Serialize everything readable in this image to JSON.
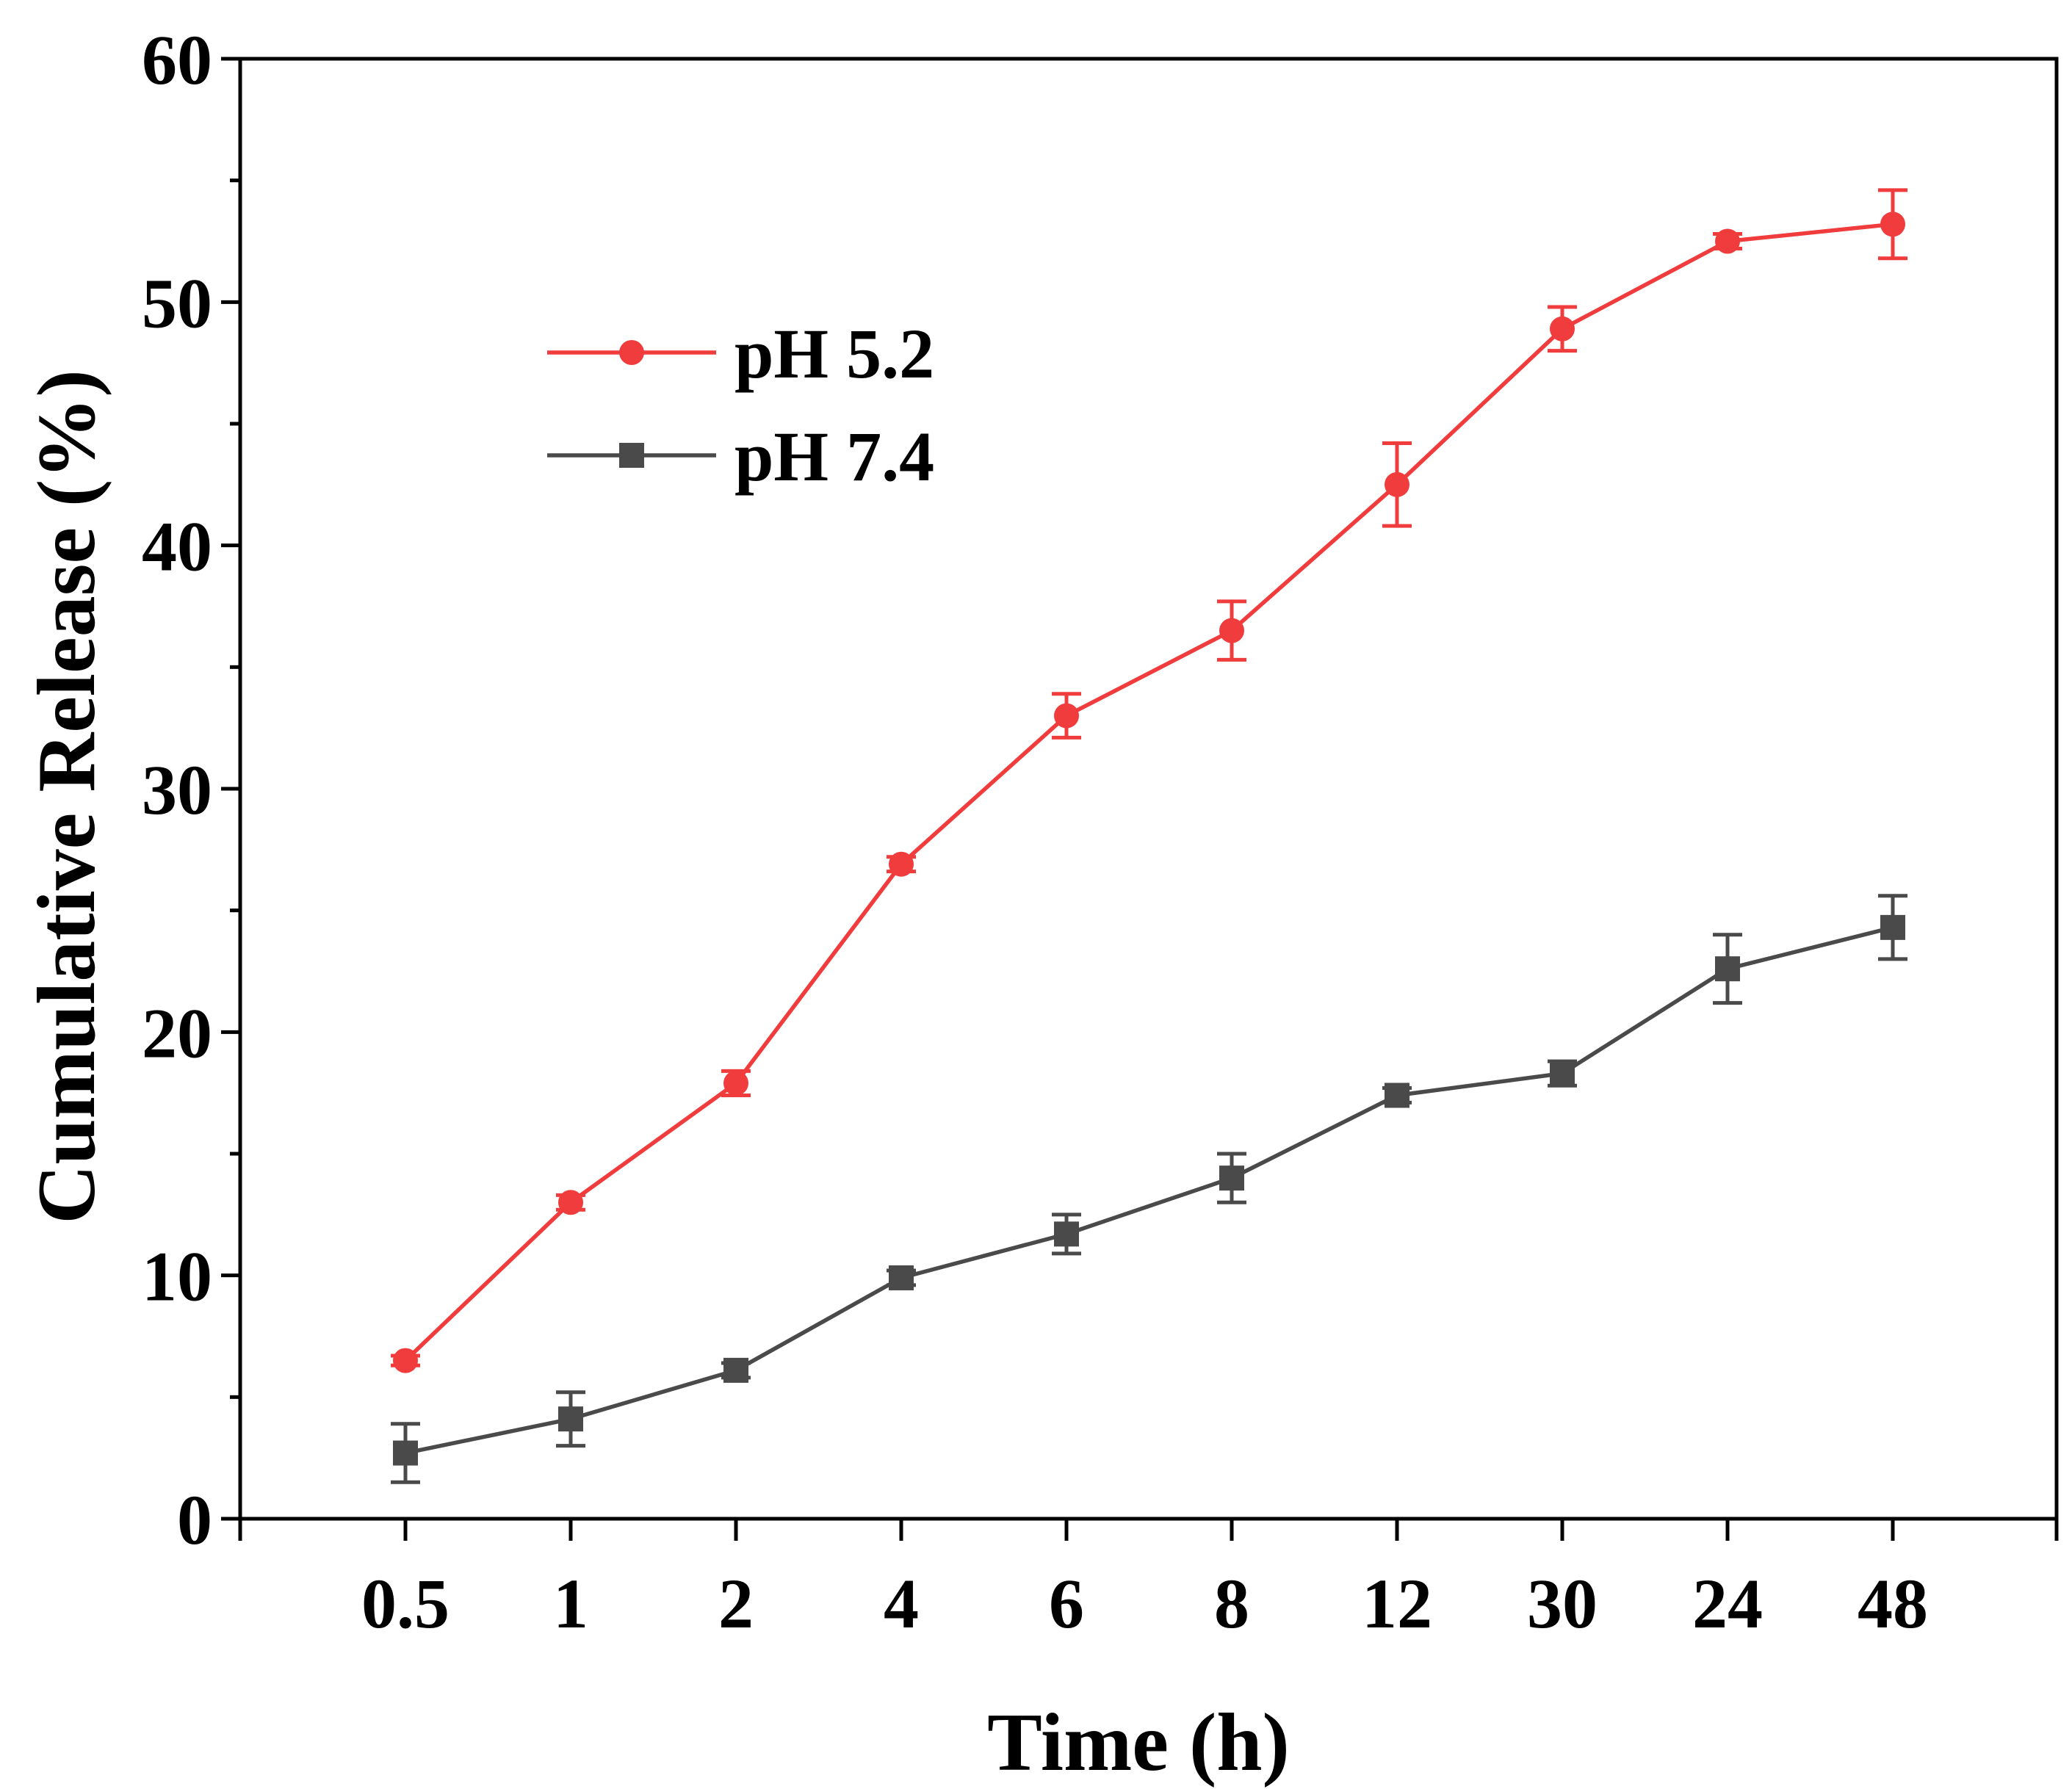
{
  "chart_data": {
    "type": "line",
    "title": "",
    "xlabel": "Time (h)",
    "ylabel": "Cumulative Release (%)",
    "categories": [
      "0.5",
      "1",
      "2",
      "4",
      "6",
      "8",
      "12",
      "30",
      "24",
      "48"
    ],
    "ylim": [
      0,
      60
    ],
    "yticks": [
      "0",
      "10",
      "20",
      "30",
      "40",
      "50",
      "60"
    ],
    "grid": false,
    "legend_position": "upper-left",
    "series": [
      {
        "name": "pH 5.2",
        "color": "#f03c3c",
        "marker": "circle",
        "values": [
          6.5,
          13.0,
          17.9,
          26.9,
          33.0,
          36.5,
          42.5,
          48.9,
          52.5,
          53.2
        ],
        "errors": [
          0.2,
          0.3,
          0.5,
          0.3,
          0.9,
          1.2,
          1.7,
          0.9,
          0.3,
          1.4
        ]
      },
      {
        "name": "pH 7.4",
        "color": "#4a4a4a",
        "marker": "square",
        "values": [
          2.7,
          4.1,
          6.1,
          9.9,
          11.7,
          14.0,
          17.4,
          18.3,
          22.6,
          24.3
        ],
        "errors": [
          1.2,
          1.1,
          0.3,
          0.3,
          0.8,
          1.0,
          0.3,
          0.5,
          1.4,
          1.3
        ]
      }
    ]
  }
}
